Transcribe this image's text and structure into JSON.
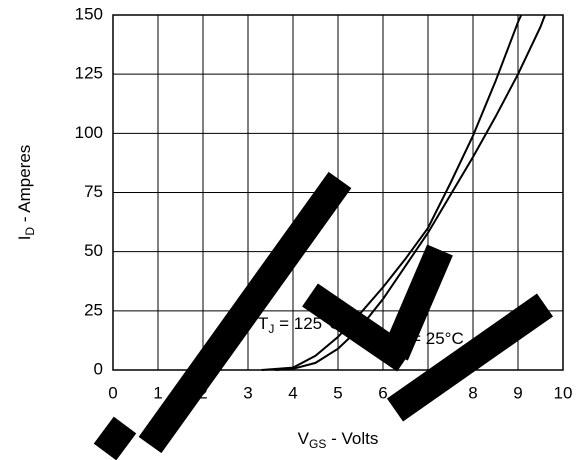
{
  "chart_data": {
    "type": "line",
    "ylabel_parts": [
      "I",
      "D",
      " - Amperes"
    ],
    "xlabel_parts": [
      "V",
      "GS",
      " - Volts"
    ],
    "xlim": [
      0,
      10
    ],
    "xticks": [
      0,
      1,
      2,
      3,
      4,
      5,
      6,
      7,
      8,
      9,
      10
    ],
    "ylim": [
      0,
      150
    ],
    "yticks": [
      0,
      25,
      50,
      75,
      100,
      125,
      150
    ],
    "grid": true,
    "series": [
      {
        "name": [
          "T",
          "J",
          " = 125°C"
        ],
        "color": "#000000",
        "x": [
          3.3,
          4,
          4.5,
          5,
          5.5,
          6,
          6.5,
          7,
          7.5,
          8,
          8.5,
          9,
          9.07
        ],
        "values": [
          0,
          1,
          6,
          14,
          24,
          35,
          47,
          60,
          79,
          99,
          122,
          147,
          150
        ]
      },
      {
        "name": [
          "T",
          "J",
          " = 25°C"
        ],
        "color": "#000000",
        "x": [
          3.6,
          4,
          4.5,
          5,
          5.5,
          6,
          6.5,
          7,
          7.5,
          8,
          8.5,
          9,
          9.5,
          9.6
        ],
        "values": [
          0,
          0.5,
          3,
          9,
          18,
          30,
          44,
          58,
          74,
          90,
          107,
          125,
          145,
          150
        ]
      }
    ]
  }
}
